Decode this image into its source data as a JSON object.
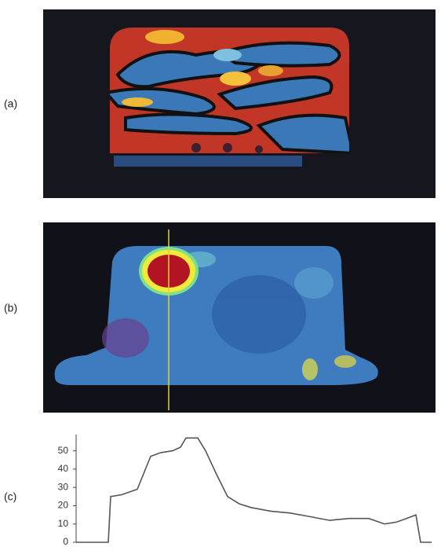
{
  "panels": [
    {
      "label": "(a)"
    },
    {
      "label": "(b)"
    }
  ],
  "chart_data": {
    "type": "line",
    "label": "(c)",
    "x": [
      0,
      41,
      44,
      58,
      78,
      95,
      108,
      123,
      133,
      140,
      155,
      165,
      178,
      193,
      208,
      223,
      248,
      273,
      298,
      323,
      348,
      373,
      393,
      408,
      421,
      433,
      439,
      453
    ],
    "values": [
      0,
      0,
      25,
      26,
      29,
      47,
      49,
      50,
      52,
      57,
      57,
      50,
      38,
      25,
      21,
      19,
      17,
      16,
      14,
      12,
      13,
      13,
      10,
      11,
      13,
      15,
      0,
      0
    ],
    "color": "#555555",
    "xlim": [
      0,
      455
    ],
    "ylim": [
      0,
      58
    ],
    "yticks": [
      0,
      10,
      20,
      30,
      40,
      50
    ]
  }
}
